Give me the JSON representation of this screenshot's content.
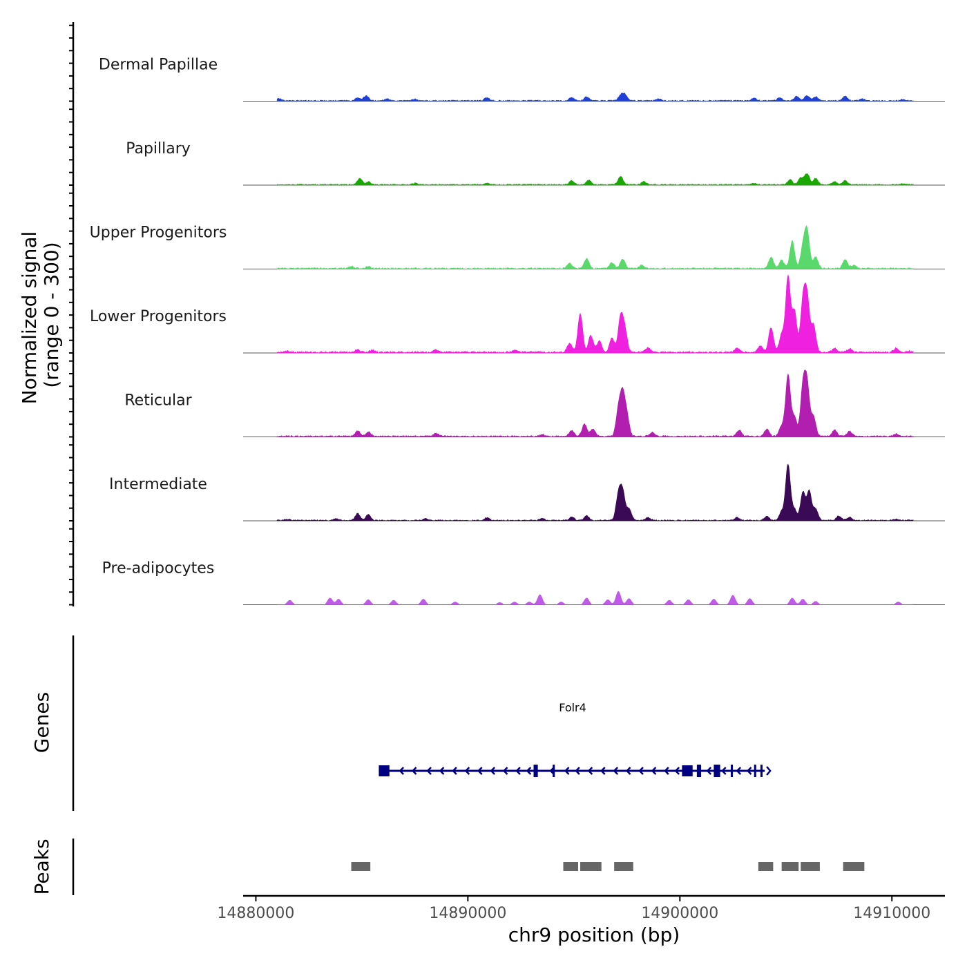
{
  "chart_data": {
    "type": "area",
    "chromosome": "chr9",
    "xlabel": "chr9 position (bp)",
    "ylabel": "Normalized signal",
    "ylabel_range": "(range 0 - 300)",
    "ylim": [
      0,
      300
    ],
    "xlim": [
      14879400,
      14912500
    ],
    "x_ticks": [
      14880000,
      14890000,
      14900000,
      14910000
    ],
    "x_tick_labels": [
      "14880000",
      "14890000",
      "14900000",
      "14910000"
    ],
    "track_domain": [
      14881000,
      14911000
    ],
    "tracks": [
      {
        "name": "Dermal Papillae",
        "color": "#1f3fd6",
        "peaks": [
          [
            14881100,
            8
          ],
          [
            14884800,
            10
          ],
          [
            14885200,
            18
          ],
          [
            14886200,
            6
          ],
          [
            14887500,
            5
          ],
          [
            14890900,
            12
          ],
          [
            14894900,
            12
          ],
          [
            14895600,
            14
          ],
          [
            14897200,
            18
          ],
          [
            14897400,
            22
          ],
          [
            14899000,
            8
          ],
          [
            14903500,
            9
          ],
          [
            14904700,
            10
          ],
          [
            14905500,
            16
          ],
          [
            14906000,
            19
          ],
          [
            14906400,
            14
          ],
          [
            14907800,
            16
          ],
          [
            14908600,
            6
          ],
          [
            14910500,
            4
          ]
        ],
        "baseline": 4
      },
      {
        "name": "Papillary",
        "color": "#19a800",
        "peaks": [
          [
            14884900,
            22
          ],
          [
            14885300,
            10
          ],
          [
            14887500,
            5
          ],
          [
            14890900,
            6
          ],
          [
            14894900,
            14
          ],
          [
            14895700,
            16
          ],
          [
            14897200,
            30
          ],
          [
            14898300,
            10
          ],
          [
            14903500,
            5
          ],
          [
            14905200,
            18
          ],
          [
            14905700,
            25
          ],
          [
            14906000,
            40
          ],
          [
            14906400,
            22
          ],
          [
            14907300,
            10
          ],
          [
            14907800,
            14
          ],
          [
            14910500,
            3
          ]
        ],
        "baseline": 4
      },
      {
        "name": "Upper Progenitors",
        "color": "#59d96b",
        "peaks": [
          [
            14884500,
            8
          ],
          [
            14885300,
            6
          ],
          [
            14894800,
            18
          ],
          [
            14895600,
            34
          ],
          [
            14896800,
            20
          ],
          [
            14897300,
            34
          ],
          [
            14898200,
            12
          ],
          [
            14904300,
            40
          ],
          [
            14904800,
            30
          ],
          [
            14905300,
            98
          ],
          [
            14905800,
            70
          ],
          [
            14906000,
            134
          ],
          [
            14906400,
            42
          ],
          [
            14907800,
            32
          ],
          [
            14908200,
            12
          ]
        ],
        "baseline": 5
      },
      {
        "name": "Lower Progenitors",
        "color": "#f020e0",
        "peaks": [
          [
            14881500,
            4
          ],
          [
            14884800,
            10
          ],
          [
            14885500,
            8
          ],
          [
            14888500,
            8
          ],
          [
            14892200,
            8
          ],
          [
            14894800,
            32
          ],
          [
            14895300,
            138
          ],
          [
            14895800,
            60
          ],
          [
            14896200,
            40
          ],
          [
            14896800,
            50
          ],
          [
            14897200,
            122
          ],
          [
            14897400,
            80
          ],
          [
            14898500,
            16
          ],
          [
            14902700,
            14
          ],
          [
            14903800,
            24
          ],
          [
            14904300,
            88
          ],
          [
            14904800,
            64
          ],
          [
            14905100,
            268
          ],
          [
            14905400,
            148
          ],
          [
            14905800,
            172
          ],
          [
            14906000,
            190
          ],
          [
            14906300,
            96
          ],
          [
            14907300,
            14
          ],
          [
            14908000,
            12
          ],
          [
            14910200,
            14
          ],
          [
            14910800,
            4
          ]
        ],
        "baseline": 6
      },
      {
        "name": "Reticular",
        "color": "#b21fb0",
        "peaks": [
          [
            14884800,
            20
          ],
          [
            14885300,
            16
          ],
          [
            14888500,
            10
          ],
          [
            14893500,
            6
          ],
          [
            14894900,
            22
          ],
          [
            14895500,
            44
          ],
          [
            14895900,
            26
          ],
          [
            14897100,
            90
          ],
          [
            14897300,
            140
          ],
          [
            14897500,
            70
          ],
          [
            14898700,
            14
          ],
          [
            14902800,
            22
          ],
          [
            14904100,
            26
          ],
          [
            14904800,
            36
          ],
          [
            14905100,
            220
          ],
          [
            14905400,
            70
          ],
          [
            14905800,
            170
          ],
          [
            14906000,
            180
          ],
          [
            14906300,
            70
          ],
          [
            14907300,
            22
          ],
          [
            14908000,
            18
          ],
          [
            14910200,
            8
          ]
        ],
        "baseline": 5
      },
      {
        "name": "Intermediate",
        "color": "#3b0a57",
        "peaks": [
          [
            14881500,
            4
          ],
          [
            14883800,
            6
          ],
          [
            14884800,
            24
          ],
          [
            14885300,
            20
          ],
          [
            14888000,
            6
          ],
          [
            14890900,
            10
          ],
          [
            14893500,
            6
          ],
          [
            14894900,
            12
          ],
          [
            14895600,
            16
          ],
          [
            14897100,
            90
          ],
          [
            14897300,
            100
          ],
          [
            14897600,
            40
          ],
          [
            14898500,
            10
          ],
          [
            14902700,
            10
          ],
          [
            14904100,
            14
          ],
          [
            14904800,
            30
          ],
          [
            14905100,
            200
          ],
          [
            14905400,
            40
          ],
          [
            14905800,
            100
          ],
          [
            14906100,
            104
          ],
          [
            14906400,
            40
          ],
          [
            14907500,
            16
          ],
          [
            14908000,
            12
          ],
          [
            14910200,
            4
          ]
        ],
        "baseline": 4
      },
      {
        "name": "Pre-adipocytes",
        "color": "#c05ae8",
        "peaks": [
          [
            14881600,
            16
          ],
          [
            14883500,
            24
          ],
          [
            14883900,
            20
          ],
          [
            14885300,
            18
          ],
          [
            14886500,
            16
          ],
          [
            14887900,
            20
          ],
          [
            14889400,
            10
          ],
          [
            14891500,
            8
          ],
          [
            14892200,
            10
          ],
          [
            14892900,
            10
          ],
          [
            14893400,
            36
          ],
          [
            14894400,
            10
          ],
          [
            14895600,
            24
          ],
          [
            14896600,
            18
          ],
          [
            14897100,
            48
          ],
          [
            14897600,
            22
          ],
          [
            14899500,
            16
          ],
          [
            14900400,
            18
          ],
          [
            14901600,
            20
          ],
          [
            14902500,
            34
          ],
          [
            14903300,
            22
          ],
          [
            14905300,
            24
          ],
          [
            14905800,
            20
          ],
          [
            14906400,
            12
          ],
          [
            14910300,
            10
          ]
        ],
        "baseline": 0
      }
    ],
    "gene_track": {
      "label": "Genes",
      "gene_name": "Folr4",
      "color": "#000080",
      "start": 14885800,
      "end": 14904000,
      "strand": "-",
      "exons": [
        [
          14885800,
          14886300
        ],
        [
          14893100,
          14893300
        ],
        [
          14894000,
          14894100
        ],
        [
          14900100,
          14900600
        ],
        [
          14900800,
          14901000
        ],
        [
          14901600,
          14901900
        ],
        [
          14902400,
          14902500
        ],
        [
          14903500,
          14903600
        ],
        [
          14903800,
          14903900
        ]
      ],
      "arrows": [
        14886800,
        14887400,
        14888100,
        14888700,
        14889300,
        14889900,
        14890500,
        14891100,
        14891700,
        14892300,
        14892800,
        14893900,
        14894600,
        14895100,
        14895700,
        14896300,
        14896900,
        14897500,
        14898100,
        14898700,
        14899300,
        14899800,
        14901300,
        14902000,
        14902700,
        14903200
      ]
    },
    "peak_track": {
      "label": "Peaks",
      "color": "#666666",
      "regions": [
        [
          14884500,
          14885400
        ],
        [
          14894500,
          14895200
        ],
        [
          14895300,
          14896300
        ],
        [
          14896900,
          14897800
        ],
        [
          14903700,
          14904400
        ],
        [
          14904800,
          14905600
        ],
        [
          14905700,
          14906600
        ],
        [
          14907700,
          14908700
        ]
      ]
    }
  }
}
